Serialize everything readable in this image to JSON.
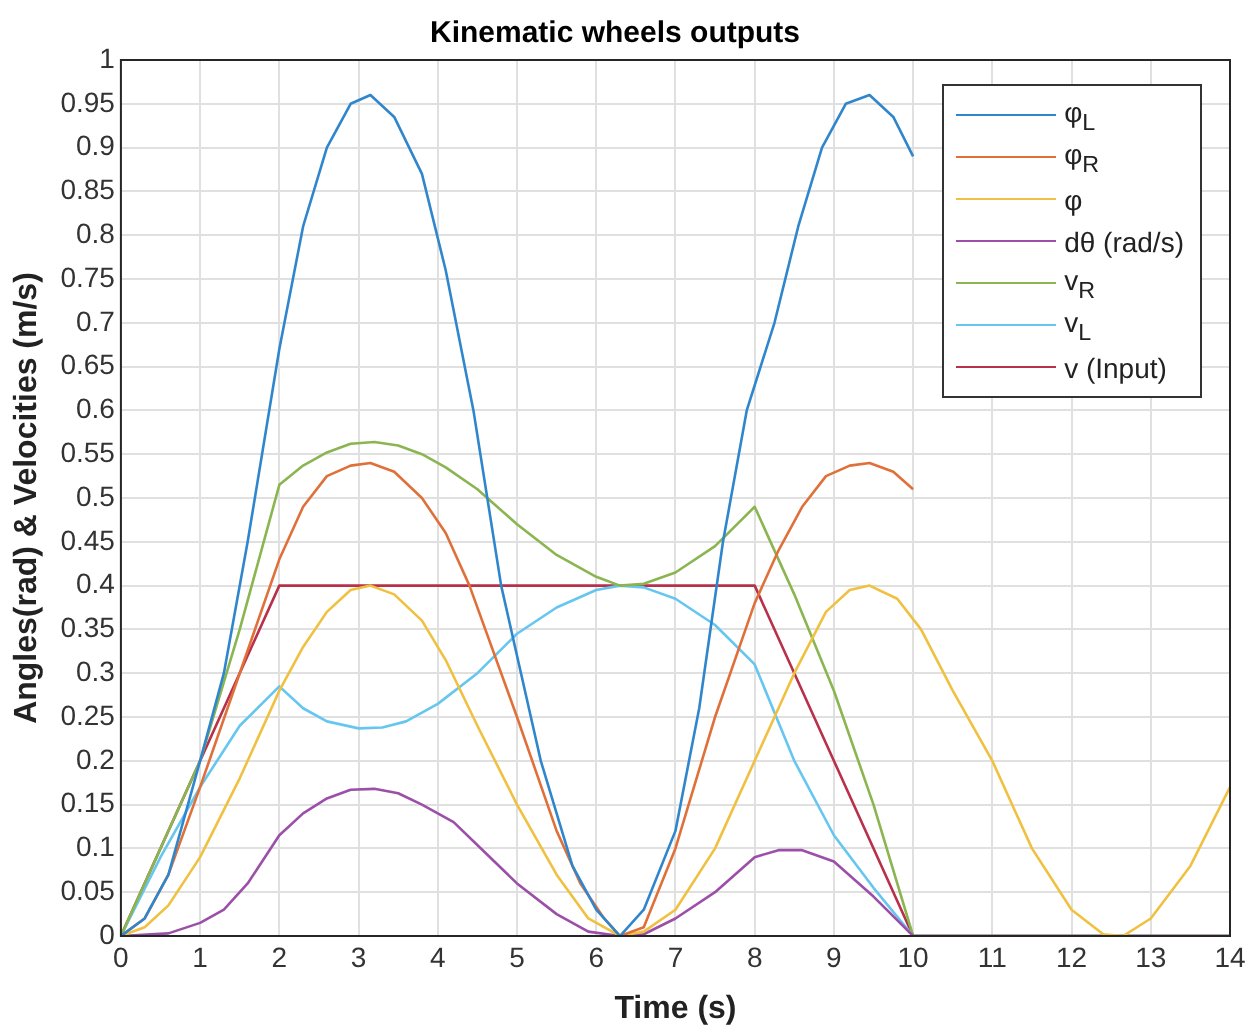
{
  "chart_data": {
    "type": "line",
    "title": "Kinematic wheels outputs",
    "xlabel": "Time (s)",
    "ylabel": "Angles(rad) & Velocities (m/s)",
    "xlim": [
      0,
      14
    ],
    "xticks": [
      0,
      1,
      2,
      3,
      4,
      5,
      6,
      7,
      8,
      9,
      10,
      11,
      12,
      13,
      14
    ],
    "ylim": [
      0,
      1
    ],
    "yticks": [
      0,
      0.05,
      0.1,
      0.15,
      0.2,
      0.25,
      0.3,
      0.35,
      0.4,
      0.45,
      0.5,
      0.55,
      0.6,
      0.65,
      0.7,
      0.75,
      0.8,
      0.85,
      0.9,
      0.95,
      1
    ],
    "grid": true,
    "legend": "top right",
    "marker": "none",
    "line_style": "solid",
    "series": [
      {
        "name": "φ$_{L}$",
        "color": "#2f86cc",
        "x": [
          0,
          0.3,
          0.6,
          1,
          1.3,
          1.6,
          2,
          2.3,
          2.6,
          2.9,
          3.15,
          3.45,
          3.8,
          4.1,
          4.45,
          4.8,
          5.3,
          5.7,
          6,
          6.3,
          6.6,
          7,
          7.3,
          7.6,
          7.9,
          8.25,
          8.55,
          8.85,
          9.15,
          9.45,
          9.75,
          10
        ],
        "values": [
          0,
          0.02,
          0.07,
          0.2,
          0.3,
          0.45,
          0.67,
          0.81,
          0.9,
          0.95,
          0.96,
          0.935,
          0.87,
          0.76,
          0.6,
          0.4,
          0.2,
          0.08,
          0.03,
          0,
          0.03,
          0.12,
          0.26,
          0.45,
          0.6,
          0.7,
          0.81,
          0.9,
          0.95,
          0.96,
          0.935,
          0.89
        ]
      },
      {
        "name": "φ$_{R}$",
        "color": "#e0703a",
        "x": [
          0,
          0.3,
          0.6,
          1,
          1.5,
          2,
          2.3,
          2.6,
          2.9,
          3.15,
          3.45,
          3.8,
          4.1,
          4.4,
          5,
          5.5,
          5.8,
          6.1,
          6.3,
          6.6,
          7,
          7.5,
          8,
          8.3,
          8.6,
          8.9,
          9.2,
          9.45,
          9.75,
          10
        ],
        "values": [
          0,
          0.02,
          0.07,
          0.17,
          0.3,
          0.43,
          0.49,
          0.525,
          0.537,
          0.54,
          0.53,
          0.5,
          0.46,
          0.4,
          0.25,
          0.12,
          0.06,
          0.02,
          0,
          0.01,
          0.1,
          0.25,
          0.38,
          0.44,
          0.49,
          0.525,
          0.537,
          0.54,
          0.53,
          0.51
        ]
      },
      {
        "name": "φ",
        "color": "#f0c040",
        "x": [
          0,
          0.3,
          0.6,
          1,
          1.5,
          2,
          2.3,
          2.6,
          2.9,
          3.15,
          3.45,
          3.8,
          4.1,
          4.5,
          5,
          5.5,
          5.9,
          6.3,
          6.6,
          7,
          7.5,
          8,
          8.5,
          8.9,
          9.2,
          9.45,
          9.8,
          10.1,
          10.5,
          11,
          11.5,
          12,
          12.4,
          12.65,
          13,
          13.5,
          14
        ],
        "values": [
          0,
          0.01,
          0.035,
          0.09,
          0.18,
          0.28,
          0.33,
          0.37,
          0.395,
          0.4,
          0.39,
          0.36,
          0.315,
          0.24,
          0.15,
          0.07,
          0.02,
          0,
          0.005,
          0.03,
          0.1,
          0.2,
          0.3,
          0.37,
          0.395,
          0.4,
          0.385,
          0.35,
          0.28,
          0.2,
          0.1,
          0.03,
          0.002,
          0,
          0.02,
          0.08,
          0.17
        ]
      },
      {
        "name": "dθ (rad/s)",
        "color": "#9b4fa8",
        "x": [
          0,
          0.6,
          1,
          1.3,
          1.6,
          2,
          2.3,
          2.6,
          2.9,
          3.2,
          3.5,
          3.8,
          4.2,
          4.6,
          5,
          5.5,
          5.9,
          6.3,
          6.6,
          7,
          7.5,
          8,
          8.3,
          8.6,
          9,
          9.5,
          10,
          14
        ],
        "values": [
          0,
          0.003,
          0.015,
          0.03,
          0.06,
          0.115,
          0.14,
          0.157,
          0.167,
          0.168,
          0.163,
          0.15,
          0.13,
          0.095,
          0.06,
          0.025,
          0.005,
          0,
          0.002,
          0.02,
          0.05,
          0.09,
          0.098,
          0.098,
          0.085,
          0.045,
          0,
          0
        ]
      },
      {
        "name": "v$_{R}$",
        "color": "#8ab550",
        "x": [
          0,
          0.5,
          1,
          1.5,
          2,
          2.3,
          2.6,
          2.9,
          3.2,
          3.5,
          3.8,
          4.1,
          4.5,
          5,
          5.5,
          6,
          6.3,
          6.6,
          7,
          7.5,
          8,
          8.5,
          9,
          9.5,
          10,
          14
        ],
        "values": [
          0,
          0.1,
          0.2,
          0.35,
          0.515,
          0.537,
          0.552,
          0.562,
          0.564,
          0.56,
          0.55,
          0.535,
          0.51,
          0.47,
          0.435,
          0.41,
          0.4,
          0.402,
          0.415,
          0.445,
          0.49,
          0.39,
          0.28,
          0.15,
          0,
          0
        ]
      },
      {
        "name": "v$_{L}$",
        "color": "#66c6f0",
        "x": [
          0,
          0.5,
          1,
          1.5,
          2,
          2.3,
          2.6,
          3,
          3.3,
          3.6,
          4,
          4.5,
          5,
          5.5,
          6,
          6.3,
          6.6,
          7,
          7.5,
          8,
          8.5,
          9,
          9.5,
          10,
          14
        ],
        "values": [
          0,
          0.09,
          0.17,
          0.24,
          0.285,
          0.26,
          0.245,
          0.237,
          0.238,
          0.245,
          0.265,
          0.3,
          0.345,
          0.375,
          0.395,
          0.4,
          0.398,
          0.385,
          0.355,
          0.31,
          0.2,
          0.115,
          0.055,
          0,
          0
        ]
      },
      {
        "name": "v (Input)",
        "color": "#b8304a",
        "x": [
          0,
          2,
          8,
          10,
          14
        ],
        "values": [
          0,
          0.4,
          0.4,
          0,
          0
        ]
      }
    ]
  }
}
